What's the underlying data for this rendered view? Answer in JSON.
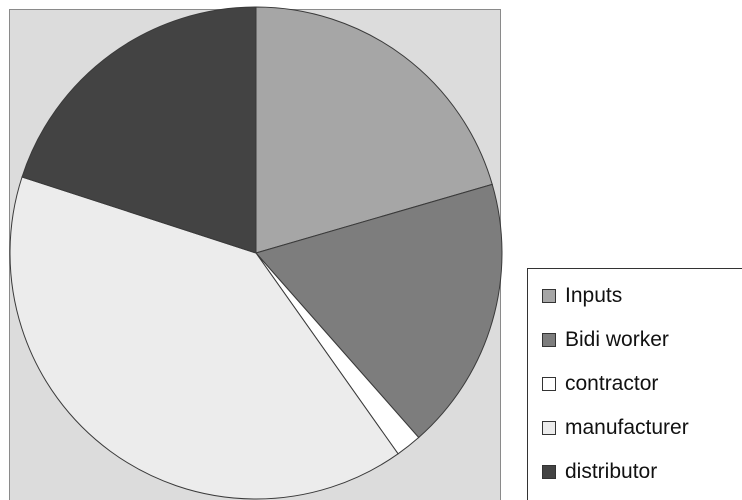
{
  "chart_data": {
    "type": "pie",
    "title": "",
    "legend_position": "bottom-right",
    "slices": [
      {
        "label": "Inputs",
        "value": 20.5,
        "color": "#a6a6a6"
      },
      {
        "label": "Bidi worker",
        "value": 18.0,
        "color": "#7d7d7d"
      },
      {
        "label": "contractor",
        "value": 1.7,
        "color": "#ffffff"
      },
      {
        "label": "manufacturer",
        "value": 39.8,
        "color": "#ececec"
      },
      {
        "label": "distributor",
        "value": 20.0,
        "color": "#434343"
      }
    ]
  }
}
